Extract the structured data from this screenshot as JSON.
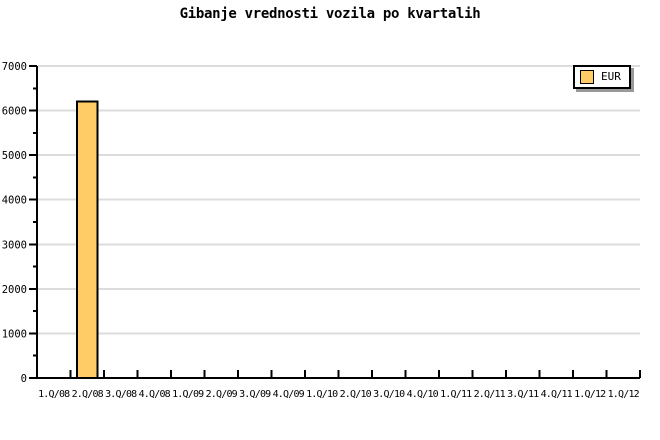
{
  "title": "Gibanje vrednosti vozila po kvartalih",
  "legend": {
    "position": "top-right",
    "items": [
      {
        "label": "EUR",
        "color": "#FFCC66"
      }
    ]
  },
  "chart_data": {
    "type": "bar",
    "title": "Gibanje vrednosti vozila po kvartalih",
    "categories": [
      "1.Q/08",
      "2.Q/08",
      "3.Q/08",
      "4.Q/08",
      "1.Q/09",
      "2.Q/09",
      "3.Q/09",
      "4.Q/09",
      "1.Q/10",
      "2.Q/10",
      "3.Q/10",
      "4.Q/10",
      "1.Q/11",
      "2.Q/11",
      "3.Q/11",
      "4.Q/11",
      "1.Q/12",
      "1.Q/12"
    ],
    "series": [
      {
        "name": "EUR",
        "color": "#FFCC66",
        "values": [
          null,
          6200,
          null,
          null,
          null,
          null,
          null,
          null,
          null,
          null,
          null,
          null,
          null,
          null,
          null,
          null,
          null,
          null
        ]
      }
    ],
    "xlabel": "",
    "ylabel": "",
    "ylim": [
      0,
      7000
    ],
    "y_ticks": [
      0,
      1000,
      2000,
      3000,
      4000,
      5000,
      6000,
      7000
    ],
    "y_minor_step": 500,
    "grid": "horizontal-major",
    "legend_position": "top-right",
    "bar_width_ratio": 0.6,
    "colors": {
      "bar_fill": "#FFCC66",
      "bar_border": "#000000",
      "grid": "#DCDCDC",
      "axis": "#000000",
      "text": "#000000",
      "background": "#FFFFFF",
      "legend_shadow": "#999999"
    }
  }
}
